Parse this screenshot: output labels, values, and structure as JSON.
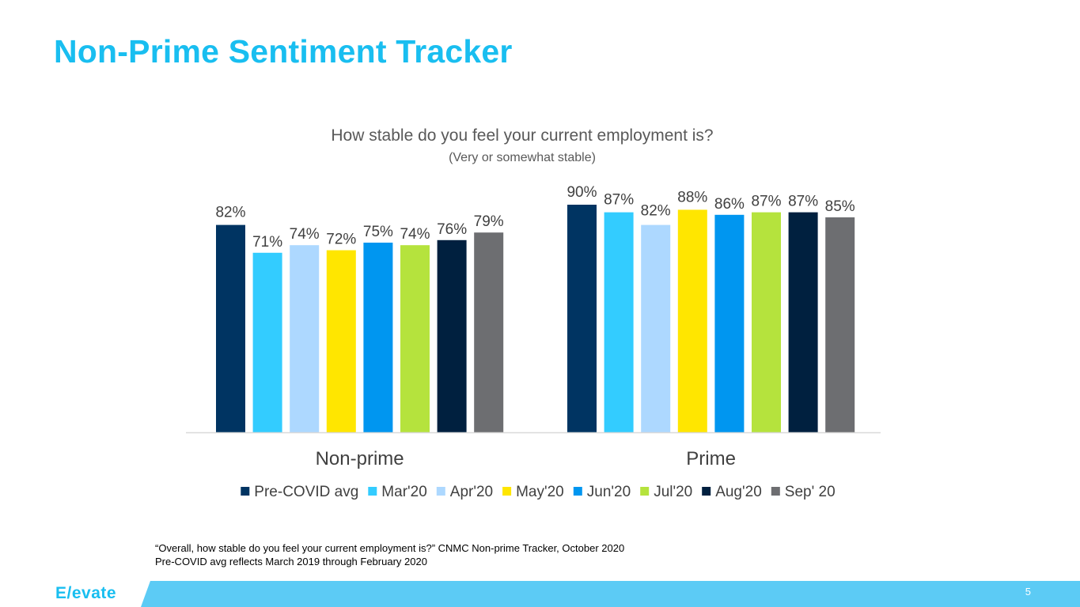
{
  "slide": {
    "title": "Non-Prime Sentiment Tracker",
    "logo_text": "E/evate",
    "page_number": "5",
    "accent_color": "#19BEF0",
    "footer_bar_color": "#5CCBF5"
  },
  "footnotes": [
    "“Overall, how stable do you feel your current employment is?” CNMC Non-prime Tracker, October 2020",
    "Pre-COVID avg reflects March 2019 through February 2020"
  ],
  "chart_data": {
    "type": "bar",
    "title": "How stable do you feel your current employment is?",
    "subtitle": "(Very or somewhat stable)",
    "categories": [
      "Non-prime",
      "Prime"
    ],
    "ylim": [
      0,
      100
    ],
    "grid": false,
    "legend_position": "bottom",
    "value_format": "percent",
    "series": [
      {
        "name": "Pre-COVID avg",
        "color": "#003462",
        "values": [
          82,
          90
        ]
      },
      {
        "name": "Mar'20",
        "color": "#33CCFF",
        "values": [
          71,
          87
        ]
      },
      {
        "name": "Apr'20",
        "color": "#ADD8FF",
        "values": [
          74,
          82
        ]
      },
      {
        "name": "May'20",
        "color": "#FFE600",
        "values": [
          72,
          88
        ]
      },
      {
        "name": "Jun'20",
        "color": "#0096F0",
        "values": [
          75,
          86
        ]
      },
      {
        "name": "Jul'20",
        "color": "#B5E33D",
        "values": [
          74,
          87
        ]
      },
      {
        "name": "Aug'20",
        "color": "#00203F",
        "values": [
          76,
          87
        ]
      },
      {
        "name": "Sep' 20",
        "color": "#6D6E71",
        "values": [
          79,
          85
        ]
      }
    ]
  }
}
